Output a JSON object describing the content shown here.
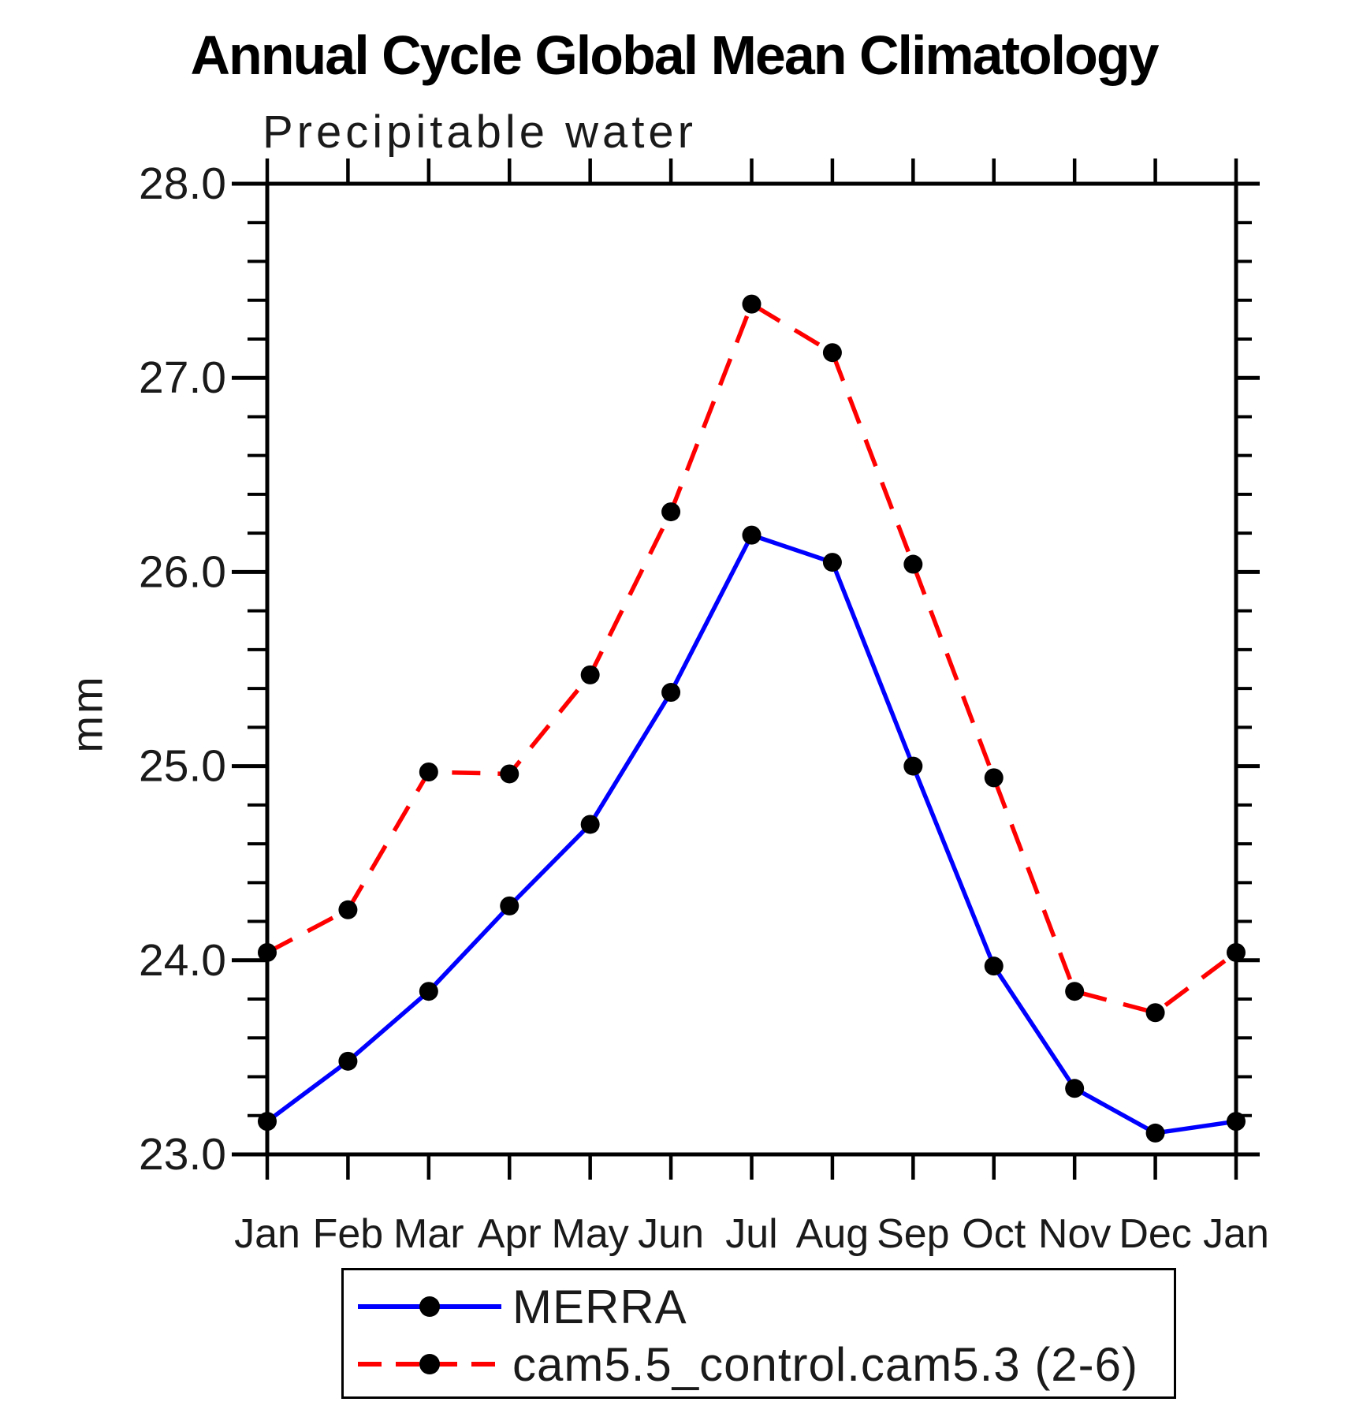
{
  "chart_data": {
    "type": "line",
    "title": "Annual Cycle Global Mean Climatology",
    "subtitle": "Precipitable water",
    "xlabel": "",
    "ylabel": "mm",
    "categories": [
      "Jan",
      "Feb",
      "Mar",
      "Apr",
      "May",
      "Jun",
      "Jul",
      "Aug",
      "Sep",
      "Oct",
      "Nov",
      "Dec",
      "Jan"
    ],
    "ylim": [
      23.0,
      28.0
    ],
    "ytick_major": 1.0,
    "ytick_minor": 0.2,
    "ytick_label_format": "one_decimal",
    "grid": false,
    "legend_position": "bottom",
    "axis_color": "#000000",
    "marker_color": "#000000",
    "series": [
      {
        "name": "MERRA",
        "color": "#0000ff",
        "style": "solid",
        "marker": "circle",
        "values": [
          23.17,
          23.48,
          23.84,
          24.28,
          24.7,
          25.38,
          26.19,
          26.05,
          25.0,
          23.97,
          23.34,
          23.11,
          23.17
        ]
      },
      {
        "name": "cam5.5_control.cam5.3 (2-6)",
        "color": "#ff0000",
        "style": "dashed",
        "marker": "circle",
        "values": [
          24.04,
          24.26,
          24.97,
          24.96,
          25.47,
          26.31,
          27.38,
          27.13,
          26.04,
          24.94,
          23.84,
          23.73,
          24.04
        ]
      }
    ]
  }
}
